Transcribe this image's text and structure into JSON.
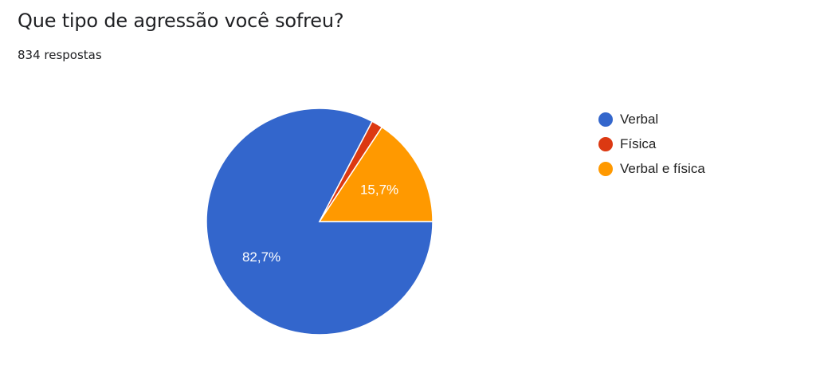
{
  "title": "Que tipo de agressão você sofreu?",
  "response_count": "834 respostas",
  "chart_data": {
    "type": "pie",
    "categories": [
      "Verbal",
      "Física",
      "Verbal e física"
    ],
    "values": [
      82.7,
      1.6,
      15.7
    ],
    "labels": [
      "82,7%",
      "",
      "15,7%"
    ],
    "colors": [
      "#3366cc",
      "#dc3912",
      "#ff9900"
    ],
    "legend_position": "right"
  }
}
